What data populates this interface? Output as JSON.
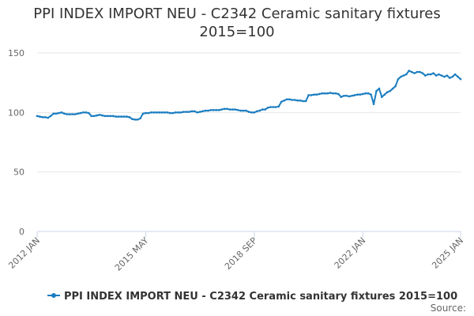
{
  "chart_data": {
    "type": "line",
    "title": "PPI INDEX IMPORT NEU - C2342 Ceramic sanitary fixtures 2015=100",
    "source": "Source:",
    "categories": [
      "2012 JAN",
      null,
      null,
      null,
      null,
      null,
      null,
      null,
      null,
      null,
      null,
      null,
      null,
      null,
      null,
      null,
      null,
      null,
      null,
      null,
      null,
      null,
      null,
      null,
      null,
      null,
      null,
      null,
      null,
      null,
      null,
      null,
      null,
      null,
      null,
      null,
      null,
      null,
      null,
      null,
      "2015 MAY",
      null,
      null,
      null,
      null,
      null,
      null,
      null,
      null,
      null,
      null,
      null,
      null,
      null,
      null,
      null,
      null,
      null,
      null,
      null,
      null,
      null,
      null,
      null,
      null,
      null,
      null,
      null,
      null,
      null,
      null,
      null,
      null,
      null,
      null,
      null,
      null,
      null,
      null,
      null,
      "2018 SEP",
      null,
      null,
      null,
      null,
      null,
      null,
      null,
      null,
      null,
      null,
      null,
      null,
      null,
      null,
      null,
      null,
      null,
      null,
      null,
      null,
      null,
      null,
      null,
      null,
      null,
      null,
      null,
      null,
      null,
      null,
      null,
      null,
      null,
      null,
      null,
      null,
      null,
      null,
      null,
      "2022 JAN",
      null,
      null,
      null,
      null,
      null,
      null,
      null,
      null,
      null,
      null,
      null,
      null,
      null,
      null,
      null,
      null,
      null,
      null,
      null,
      null,
      null,
      null,
      null,
      null,
      null,
      null,
      null,
      null,
      null,
      null,
      null,
      null,
      null,
      null,
      null,
      "2025 JAN"
    ],
    "series": [
      {
        "name": "PPI INDEX IMPORT NEU - C2342 Ceramic sanitary fixtures 2015=100",
        "color": "#1a7dc0",
        "values": [
          97,
          96.5,
          96,
          96,
          95.5,
          97,
          99,
          99,
          99.5,
          100,
          99,
          98.5,
          98.5,
          98.5,
          98.5,
          99,
          99.5,
          100,
          100,
          99.5,
          97,
          97,
          97.5,
          98,
          97.5,
          97,
          97,
          97,
          97,
          96.5,
          96.5,
          96.5,
          96.5,
          96.5,
          96,
          94.5,
          94,
          94,
          95,
          99,
          99.5,
          99.5,
          100,
          100,
          100,
          100,
          100,
          100,
          100,
          99.5,
          99.5,
          100,
          100,
          100,
          100.5,
          100.5,
          100.5,
          101,
          101,
          100,
          100.5,
          101,
          101.5,
          101.5,
          102,
          102,
          102,
          102,
          102.5,
          103,
          103,
          102.5,
          102.5,
          102.5,
          102,
          101.5,
          101.5,
          101.5,
          100.5,
          100,
          100,
          101,
          101.5,
          102.5,
          102.5,
          104,
          104.5,
          104.5,
          104.5,
          105,
          109,
          110,
          111,
          111,
          110.5,
          110.5,
          110,
          110,
          109.5,
          109.5,
          114.5,
          114.5,
          115,
          115,
          115.5,
          116,
          116,
          116,
          116.5,
          116,
          116,
          115.5,
          113,
          114,
          114,
          113.5,
          114,
          114.5,
          115,
          115,
          115.5,
          116,
          116,
          115,
          107,
          118,
          120,
          113,
          115,
          117,
          118,
          120,
          122,
          128,
          130,
          131,
          132,
          135,
          134,
          133,
          134,
          134,
          133,
          131,
          132,
          132,
          133,
          131,
          132,
          131,
          130,
          131,
          129,
          130,
          132,
          130,
          128
        ]
      }
    ],
    "ylim": [
      0,
      150
    ],
    "yticks": [
      0,
      50,
      100,
      150
    ],
    "grid": true
  }
}
